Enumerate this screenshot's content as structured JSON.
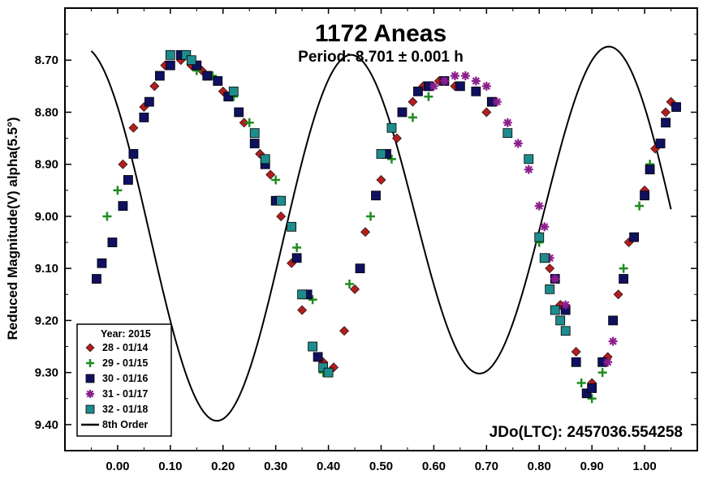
{
  "chart_data": {
    "type": "scatter",
    "title": "1172 Aneas",
    "subtitle": "Period: 8.701 ± 0.001 h",
    "xlabel": "",
    "ylabel": "Reduced Magnitude(V) alpha(5.5°)",
    "annotation": "JDo(LTC): 2457036.554258",
    "xlim": [
      -0.1,
      1.1
    ],
    "ylim": [
      9.45,
      8.6
    ],
    "y_inverted": true,
    "grid": false,
    "legend_placement": "bottom-left",
    "x_ticks": [
      "0.00",
      "0.10",
      "0.20",
      "0.30",
      "0.40",
      "0.50",
      "0.60",
      "0.70",
      "0.80",
      "0.90",
      "1.00"
    ],
    "y_ticks": [
      "8.70",
      "8.80",
      "8.90",
      "9.00",
      "9.10",
      "9.20",
      "9.30",
      "9.40"
    ],
    "legend": {
      "title": "Year: 2015",
      "entries": [
        "28 - 01/14",
        "29 - 01/15",
        "30 - 01/16",
        "31 - 01/17",
        "32 - 01/18",
        "8th Order"
      ]
    },
    "series": [
      {
        "name": "28 - 01/14",
        "marker": "diamond",
        "color": "#b41e1e",
        "points": [
          [
            0.01,
            8.9
          ],
          [
            0.03,
            8.83
          ],
          [
            0.05,
            8.79
          ],
          [
            0.07,
            8.75
          ],
          [
            0.09,
            8.71
          ],
          [
            0.12,
            8.7
          ],
          [
            0.14,
            8.71
          ],
          [
            0.16,
            8.72
          ],
          [
            0.2,
            8.76
          ],
          [
            0.24,
            8.82
          ],
          [
            0.27,
            8.88
          ],
          [
            0.29,
            8.92
          ],
          [
            0.31,
            9.0
          ],
          [
            0.33,
            9.09
          ],
          [
            0.35,
            9.18
          ],
          [
            0.39,
            9.28
          ],
          [
            0.41,
            9.29
          ],
          [
            0.43,
            9.22
          ],
          [
            0.45,
            9.14
          ],
          [
            0.47,
            9.03
          ],
          [
            0.5,
            8.93
          ],
          [
            0.53,
            8.85
          ],
          [
            0.56,
            8.78
          ],
          [
            0.58,
            8.75
          ],
          [
            0.61,
            8.74
          ],
          [
            0.64,
            8.75
          ],
          [
            0.7,
            8.8
          ],
          [
            0.82,
            9.1
          ],
          [
            0.84,
            9.17
          ],
          [
            0.87,
            9.26
          ],
          [
            0.9,
            9.32
          ],
          [
            0.93,
            9.27
          ],
          [
            0.95,
            9.15
          ],
          [
            0.97,
            9.05
          ],
          [
            1.0,
            8.95
          ],
          [
            1.02,
            8.87
          ],
          [
            1.04,
            8.8
          ],
          [
            1.05,
            8.78
          ]
        ]
      },
      {
        "name": "29 - 01/15",
        "marker": "plus",
        "color": "#1e8c1e",
        "points": [
          [
            -0.02,
            9.0
          ],
          [
            0.0,
            8.95
          ],
          [
            0.15,
            8.72
          ],
          [
            0.18,
            8.73
          ],
          [
            0.22,
            8.77
          ],
          [
            0.25,
            8.82
          ],
          [
            0.3,
            8.93
          ],
          [
            0.34,
            9.06
          ],
          [
            0.37,
            9.16
          ],
          [
            0.39,
            9.3
          ],
          [
            0.44,
            9.13
          ],
          [
            0.48,
            9.0
          ],
          [
            0.52,
            8.89
          ],
          [
            0.56,
            8.81
          ],
          [
            0.59,
            8.77
          ],
          [
            0.8,
            9.05
          ],
          [
            0.88,
            9.32
          ],
          [
            0.9,
            9.35
          ],
          [
            0.92,
            9.3
          ],
          [
            0.96,
            9.1
          ],
          [
            0.99,
            8.98
          ],
          [
            1.01,
            8.9
          ]
        ]
      },
      {
        "name": "30 - 01/16",
        "marker": "square",
        "color": "#101060",
        "points": [
          [
            -0.04,
            9.12
          ],
          [
            -0.03,
            9.09
          ],
          [
            -0.01,
            9.05
          ],
          [
            0.01,
            8.98
          ],
          [
            0.02,
            8.93
          ],
          [
            0.03,
            8.88
          ],
          [
            0.05,
            8.81
          ],
          [
            0.06,
            8.78
          ],
          [
            0.08,
            8.73
          ],
          [
            0.1,
            8.71
          ],
          [
            0.12,
            8.69
          ],
          [
            0.15,
            8.71
          ],
          [
            0.17,
            8.73
          ],
          [
            0.19,
            8.74
          ],
          [
            0.21,
            8.77
          ],
          [
            0.23,
            8.8
          ],
          [
            0.26,
            8.86
          ],
          [
            0.28,
            8.9
          ],
          [
            0.3,
            8.97
          ],
          [
            0.34,
            9.08
          ],
          [
            0.36,
            9.15
          ],
          [
            0.38,
            9.27
          ],
          [
            0.46,
            9.1
          ],
          [
            0.49,
            8.96
          ],
          [
            0.51,
            8.88
          ],
          [
            0.54,
            8.8
          ],
          [
            0.57,
            8.76
          ],
          [
            0.59,
            8.75
          ],
          [
            0.62,
            8.74
          ],
          [
            0.65,
            8.75
          ],
          [
            0.68,
            8.76
          ],
          [
            0.71,
            8.78
          ],
          [
            0.83,
            9.12
          ],
          [
            0.85,
            9.18
          ],
          [
            0.87,
            9.28
          ],
          [
            0.89,
            9.34
          ],
          [
            0.9,
            9.33
          ],
          [
            0.92,
            9.28
          ],
          [
            0.94,
            9.2
          ],
          [
            0.96,
            9.12
          ],
          [
            0.98,
            9.04
          ],
          [
            1.0,
            8.96
          ],
          [
            1.01,
            8.91
          ],
          [
            1.03,
            8.86
          ],
          [
            1.04,
            8.82
          ],
          [
            1.06,
            8.79
          ]
        ]
      },
      {
        "name": "31 - 01/17",
        "marker": "asterisk",
        "color": "#8c1e8c",
        "points": [
          [
            0.6,
            8.75
          ],
          [
            0.62,
            8.74
          ],
          [
            0.64,
            8.73
          ],
          [
            0.66,
            8.73
          ],
          [
            0.68,
            8.74
          ],
          [
            0.7,
            8.75
          ],
          [
            0.72,
            8.78
          ],
          [
            0.74,
            8.82
          ],
          [
            0.76,
            8.86
          ],
          [
            0.78,
            8.91
          ],
          [
            0.8,
            8.98
          ],
          [
            0.81,
            9.02
          ],
          [
            0.82,
            9.08
          ],
          [
            0.83,
            9.12
          ],
          [
            0.85,
            9.17
          ],
          [
            0.93,
            9.28
          ],
          [
            0.94,
            9.24
          ]
        ]
      },
      {
        "name": "32 - 01/18",
        "marker": "square",
        "color": "#1e8c8c",
        "points": [
          [
            0.1,
            8.69
          ],
          [
            0.13,
            8.69
          ],
          [
            0.14,
            8.7
          ],
          [
            0.22,
            8.76
          ],
          [
            0.26,
            8.84
          ],
          [
            0.28,
            8.89
          ],
          [
            0.31,
            8.97
          ],
          [
            0.33,
            9.02
          ],
          [
            0.35,
            9.15
          ],
          [
            0.37,
            9.25
          ],
          [
            0.39,
            9.29
          ],
          [
            0.4,
            9.3
          ],
          [
            0.5,
            8.88
          ],
          [
            0.52,
            8.83
          ],
          [
            0.74,
            8.84
          ],
          [
            0.78,
            8.89
          ],
          [
            0.8,
            9.04
          ],
          [
            0.81,
            9.08
          ],
          [
            0.82,
            9.14
          ],
          [
            0.83,
            9.18
          ],
          [
            0.84,
            9.2
          ],
          [
            0.85,
            9.22
          ]
        ]
      }
    ],
    "fit_curve": {
      "name": "8th Order",
      "color": "#000000",
      "x_range": [
        -0.05,
        1.05
      ],
      "harmonics": {
        "mean": 9.015,
        "a1": 0.01,
        "b1": 0.045,
        "a2": -0.235,
        "b2": 0.235
      }
    }
  }
}
